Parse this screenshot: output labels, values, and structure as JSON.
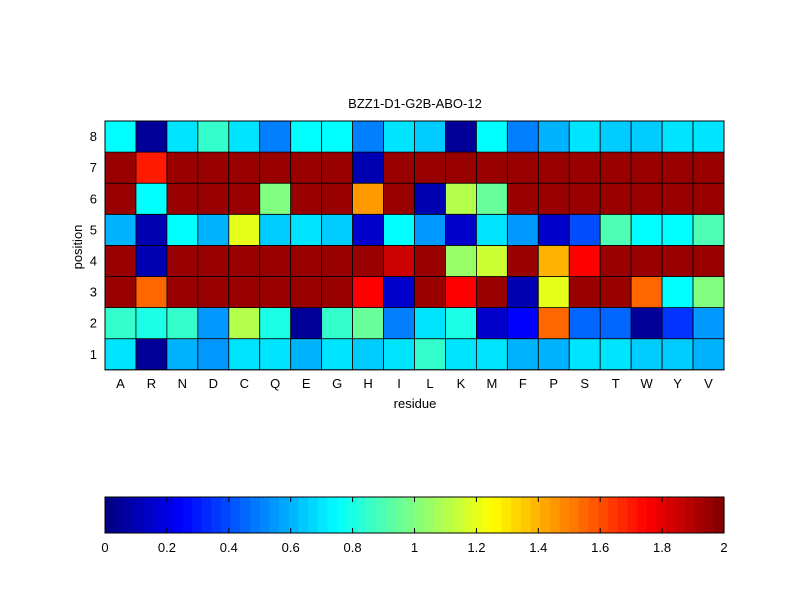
{
  "chart_data": [
    {
      "type": "heatmap",
      "title": "BZZ1-D1-G2B-ABO-12",
      "xlabel": "residue",
      "ylabel": "position",
      "x_categories": [
        "A",
        "R",
        "N",
        "D",
        "C",
        "Q",
        "E",
        "G",
        "H",
        "I",
        "L",
        "K",
        "M",
        "F",
        "P",
        "S",
        "T",
        "W",
        "Y",
        "V"
      ],
      "y_categories": [
        "1",
        "2",
        "3",
        "4",
        "5",
        "6",
        "7",
        "8"
      ],
      "clim": [
        0,
        2
      ],
      "colormap": "jet",
      "grid": true,
      "values": [
        [
          0.7,
          0.05,
          0.6,
          0.55,
          0.7,
          0.7,
          0.6,
          0.7,
          0.65,
          0.7,
          0.85,
          0.7,
          0.7,
          0.6,
          0.6,
          0.7,
          0.7,
          0.65,
          0.65,
          0.6
        ],
        [
          0.85,
          0.8,
          0.85,
          0.55,
          1.1,
          0.8,
          0.05,
          0.85,
          0.95,
          0.5,
          0.7,
          0.8,
          0.15,
          0.25,
          1.55,
          0.45,
          0.45,
          0.05,
          0.35,
          0.55
        ],
        [
          1.95,
          1.55,
          1.95,
          1.95,
          1.95,
          1.95,
          1.95,
          1.95,
          1.75,
          0.15,
          1.95,
          1.75,
          1.95,
          0.1,
          1.2,
          1.95,
          1.95,
          1.55,
          0.75,
          1.0
        ],
        [
          1.95,
          0.1,
          1.95,
          1.95,
          1.95,
          1.95,
          1.95,
          1.95,
          1.95,
          1.85,
          1.95,
          1.05,
          1.15,
          1.95,
          1.4,
          1.75,
          1.95,
          1.95,
          1.95,
          1.95
        ],
        [
          0.6,
          0.1,
          0.75,
          0.6,
          1.2,
          0.65,
          0.7,
          0.65,
          0.15,
          0.75,
          0.55,
          0.15,
          0.7,
          0.55,
          0.15,
          0.4,
          0.9,
          0.75,
          0.75,
          0.9
        ],
        [
          1.95,
          0.75,
          1.95,
          1.95,
          1.95,
          1.0,
          1.95,
          1.95,
          1.45,
          1.95,
          0.1,
          1.1,
          0.95,
          1.95,
          1.95,
          1.95,
          1.95,
          1.95,
          1.95,
          1.95
        ],
        [
          1.95,
          1.7,
          1.95,
          1.95,
          1.95,
          1.95,
          1.95,
          1.95,
          0.1,
          1.95,
          1.95,
          1.95,
          1.95,
          1.95,
          1.95,
          1.95,
          1.95,
          1.95,
          1.95,
          1.95
        ],
        [
          0.75,
          0.05,
          0.7,
          0.85,
          0.7,
          0.5,
          0.75,
          0.75,
          0.5,
          0.7,
          0.65,
          0.05,
          0.75,
          0.5,
          0.6,
          0.7,
          0.65,
          0.65,
          0.7,
          0.7
        ]
      ]
    },
    {
      "type": "colorbar",
      "colormap": "jet",
      "range": [
        0,
        2
      ],
      "tick_labels": [
        "0",
        "0.2",
        "0.4",
        "0.6",
        "0.8",
        "1",
        "1.2",
        "1.4",
        "1.6",
        "1.8",
        "2"
      ],
      "ticks": [
        0,
        0.2,
        0.4,
        0.6,
        0.8,
        1,
        1.2,
        1.4,
        1.6,
        1.8,
        2
      ]
    }
  ]
}
